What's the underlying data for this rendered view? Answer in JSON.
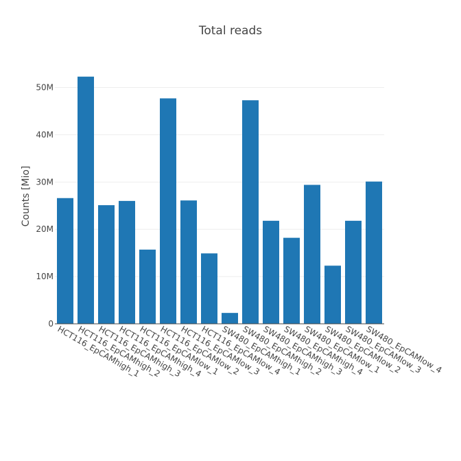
{
  "chart_data": {
    "type": "bar",
    "title": "Total reads",
    "xlabel": "",
    "ylabel": "Counts [Mio]",
    "categories": [
      "HCT116_EpCAMhigh_1",
      "HCT116_EpCAMhigh_2",
      "HCT116_EpCAMhigh_3",
      "HCT116_EpCAMhigh_4",
      "HCT116_EpCAMlow_1",
      "HCT116_EpCAMlow_2",
      "HCT116_EpCAMlow_3",
      "HCT116_EpCAMlow_4",
      "SW480_EpCAMhigh_1",
      "SW480_EpCAMhigh_2",
      "SW480_EpCAMhigh_3",
      "SW480_EpCAMhigh_4",
      "SW480_EpCAMlow_1",
      "SW480_EpCAMlow_2",
      "SW480_EpCAMlow_3",
      "SW480_EpCAMlow_4"
    ],
    "values": [
      26.6,
      52.3,
      25.1,
      26.0,
      15.7,
      47.7,
      26.1,
      14.9,
      2.3,
      47.3,
      21.8,
      18.2,
      29.4,
      12.3,
      21.8,
      30.1
    ],
    "ylim": [
      0,
      54
    ],
    "yticks": [
      0,
      10,
      20,
      30,
      40,
      50
    ],
    "ytick_labels": [
      "0",
      "10M",
      "20M",
      "30M",
      "40M",
      "50M"
    ],
    "grid": true,
    "bar_color": "#1f77b4"
  }
}
